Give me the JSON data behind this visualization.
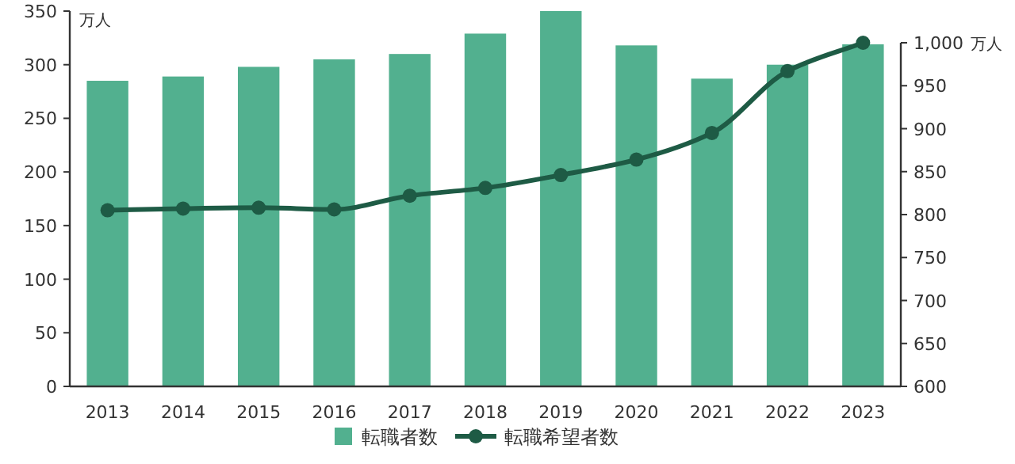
{
  "chart_data": {
    "type": "bar",
    "ylabel": "万人",
    "y2label": "万人",
    "categories": [
      "2013",
      "2014",
      "2015",
      "2016",
      "2017",
      "2018",
      "2019",
      "2020",
      "2021",
      "2022",
      "2023"
    ],
    "series": [
      {
        "name": "転職者数",
        "color": "#52b08f",
        "values": [
          285,
          289,
          298,
          305,
          310,
          329,
          350,
          318,
          287,
          300,
          319
        ]
      },
      {
        "name": "転職希望者数",
        "type": "line",
        "axis": "y2",
        "color": "#1e5b45",
        "values": [
          805,
          807,
          808,
          806,
          822,
          831,
          846,
          864,
          895,
          967,
          1000
        ]
      }
    ],
    "ylim": [
      0,
      350
    ],
    "yticks": [
      0,
      50,
      100,
      150,
      200,
      250,
      300,
      350
    ],
    "y2lim": [
      600,
      1000
    ],
    "y2ticks": [
      600,
      650,
      700,
      750,
      800,
      850,
      900,
      950,
      {
        "value": 1000,
        "label": "1,000"
      }
    ],
    "marker": "circle",
    "line_style": "solid",
    "legend": "bottom",
    "grid": false
  }
}
